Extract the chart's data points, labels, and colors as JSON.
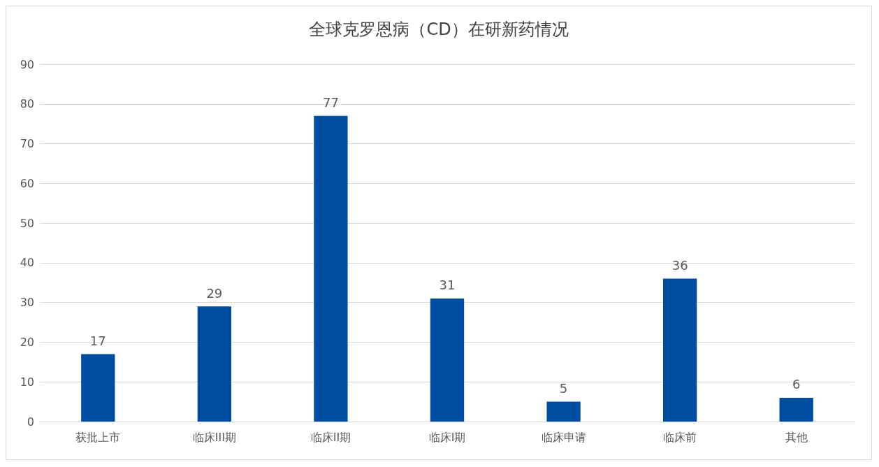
{
  "chart_data": {
    "type": "bar",
    "title": "全球克罗恩病（CD）在研新药情况",
    "categories": [
      "获批上市",
      "临床III期",
      "临床II期",
      "临床I期",
      "临床申请",
      "临床前",
      "其他"
    ],
    "values": [
      17,
      29,
      77,
      31,
      5,
      36,
      6
    ],
    "color": "#004ea2",
    "ylim": [
      0,
      90
    ],
    "yticks": [
      0,
      10,
      20,
      30,
      40,
      50,
      60,
      70,
      80,
      90
    ],
    "grid": "y",
    "data_labels": true
  }
}
